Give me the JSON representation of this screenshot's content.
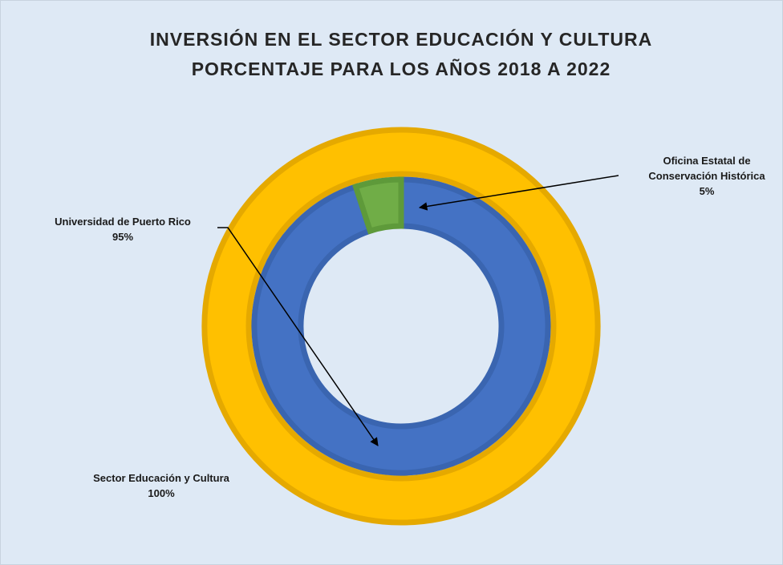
{
  "chart_data": {
    "type": "nested-donut",
    "title": "INVERSIÓN EN EL SECTOR EDUCACIÓN Y CULTURA",
    "subtitle": "PORCENTAJE PARA LOS AÑOS 2018 A 2022",
    "rings": [
      {
        "categories": [
          "Sector Educación y Cultura"
        ],
        "values": [
          100
        ],
        "value_labels": [
          "100%"
        ],
        "colors": [
          "#ffc000"
        ]
      },
      {
        "categories": [
          "Universidad de Puerto Rico",
          "Oficina Estatal de Conservación Histórica"
        ],
        "values": [
          95,
          5
        ],
        "value_labels": [
          "95%",
          "5%"
        ],
        "colors": [
          "#4472c4",
          "#70ad47"
        ]
      }
    ]
  }
}
